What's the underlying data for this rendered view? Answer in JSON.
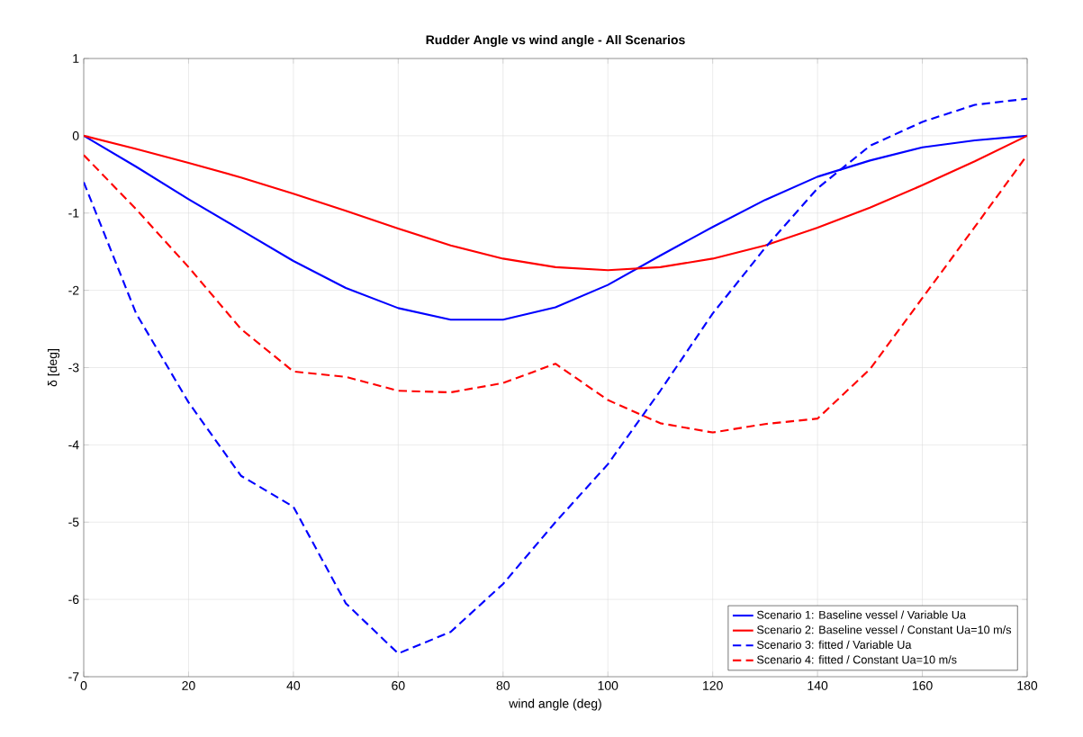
{
  "chart_data": {
    "type": "line",
    "title": "Rudder Angle vs wind angle - All Scenarios",
    "xlabel": "wind angle (deg)",
    "ylabel": "δ [deg]",
    "x": [
      0,
      10,
      20,
      30,
      40,
      50,
      60,
      70,
      80,
      90,
      100,
      110,
      120,
      130,
      140,
      150,
      160,
      170,
      180
    ],
    "series": [
      {
        "name": "Scenario 1: Baseline vessel / Variable Ua",
        "color": "#0000ff",
        "line_style": "solid",
        "values": [
          0,
          -0.4,
          -0.82,
          -1.22,
          -1.62,
          -1.97,
          -2.23,
          -2.38,
          -2.38,
          -2.22,
          -1.93,
          -1.55,
          -1.18,
          -0.83,
          -0.53,
          -0.32,
          -0.15,
          -0.06,
          0
        ]
      },
      {
        "name": "Scenario 2: Baseline vessel / Constant Ua=10 m/s",
        "color": "#ff0000",
        "line_style": "solid",
        "values": [
          0,
          -0.17,
          -0.35,
          -0.54,
          -0.75,
          -0.97,
          -1.2,
          -1.42,
          -1.59,
          -1.7,
          -1.74,
          -1.7,
          -1.59,
          -1.42,
          -1.19,
          -0.93,
          -0.64,
          -0.33,
          0
        ]
      },
      {
        "name": "Scenario 3: fitted / Variable Ua",
        "color": "#0000ff",
        "line_style": "dashed",
        "values": [
          -0.6,
          -2.3,
          -3.45,
          -4.4,
          -4.8,
          -6.05,
          -6.7,
          -6.42,
          -5.8,
          -5.0,
          -4.25,
          -3.3,
          -2.3,
          -1.45,
          -0.68,
          -0.13,
          0.18,
          0.4,
          0.48
        ]
      },
      {
        "name": "Scenario 4: fitted / Constant Ua=10 m/s",
        "color": "#ff0000",
        "line_style": "dashed",
        "values": [
          -0.25,
          -0.95,
          -1.7,
          -2.5,
          -3.05,
          -3.12,
          -3.3,
          -3.32,
          -3.2,
          -2.95,
          -3.42,
          -3.72,
          -3.84,
          -3.73,
          -3.66,
          -3.02,
          -2.1,
          -1.18,
          -0.25
        ]
      }
    ],
    "xlim": [
      0,
      180
    ],
    "xticks": [
      0,
      20,
      40,
      60,
      80,
      100,
      120,
      140,
      160,
      180
    ],
    "ylim": [
      -7,
      1
    ],
    "yticks": [
      -7,
      -6,
      -5,
      -4,
      -3,
      -2,
      -1,
      0,
      1
    ],
    "grid": true,
    "legend": "bottom right",
    "marker": "none"
  }
}
